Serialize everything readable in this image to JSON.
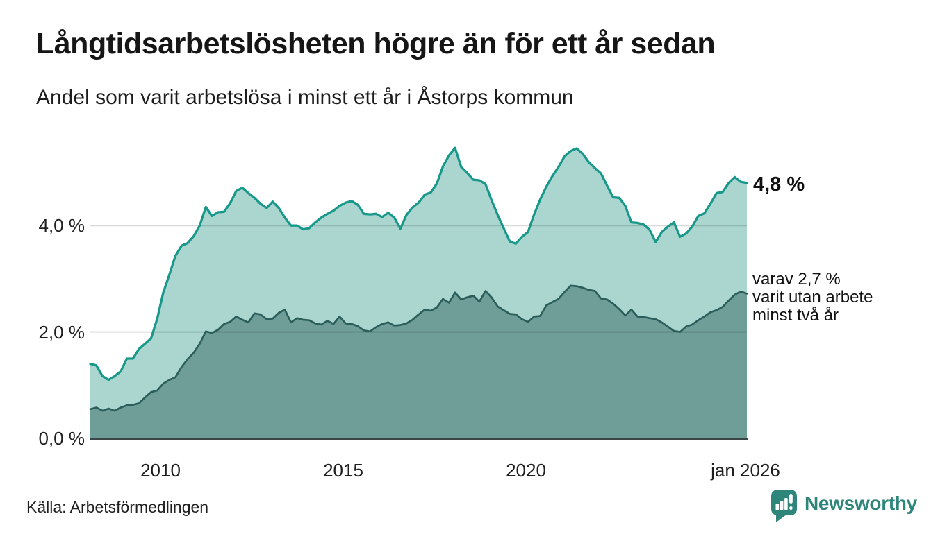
{
  "header": {
    "title": "Långtidsarbetslösheten högre än för ett år sedan",
    "subtitle": "Andel som varit arbetslösa i minst ett år i Åstorps kommun"
  },
  "chart_data": {
    "type": "area",
    "x_start": "jan 2008",
    "x_end": "jan 2026",
    "x_step_months": 2,
    "ylim": [
      0,
      5.8
    ],
    "grid": true,
    "grid_color": "#d9d9d9",
    "axis_color": "#3b4648",
    "yticks": [
      {
        "value": 0,
        "label": "0,0 %"
      },
      {
        "value": 2,
        "label": "2,0 %"
      },
      {
        "value": 4,
        "label": "4,0 %"
      }
    ],
    "xticks": [
      {
        "label": "2010"
      },
      {
        "label": "2015"
      },
      {
        "label": "2020"
      },
      {
        "label": "jan 2026"
      }
    ],
    "series": [
      {
        "name": "Andel som varit arbetslösa i minst ett år",
        "line_color": "#17988a",
        "fill_color": "#aad6cf",
        "end_value": "4,8 %",
        "values": [
          1.4,
          1.37,
          1.17,
          1.1,
          1.17,
          1.26,
          1.5,
          1.5,
          1.68,
          1.78,
          1.88,
          2.25,
          2.74,
          3.08,
          3.43,
          3.62,
          3.67,
          3.8,
          4.0,
          4.35,
          4.18,
          4.25,
          4.26,
          4.42,
          4.65,
          4.71,
          4.61,
          4.52,
          4.41,
          4.33,
          4.45,
          4.33,
          4.15,
          4.0,
          4.0,
          3.93,
          3.95,
          4.06,
          4.15,
          4.22,
          4.28,
          4.37,
          4.43,
          4.46,
          4.39,
          4.22,
          4.21,
          4.22,
          4.16,
          4.24,
          4.15,
          3.94,
          4.2,
          4.34,
          4.43,
          4.58,
          4.62,
          4.79,
          5.11,
          5.32,
          5.46,
          5.1,
          4.99,
          4.86,
          4.85,
          4.78,
          4.48,
          4.2,
          3.95,
          3.7,
          3.66,
          3.79,
          3.88,
          4.21,
          4.49,
          4.73,
          4.93,
          5.1,
          5.3,
          5.4,
          5.45,
          5.35,
          5.19,
          5.08,
          4.98,
          4.75,
          4.53,
          4.52,
          4.37,
          4.06,
          4.05,
          4.02,
          3.92,
          3.69,
          3.88,
          3.98,
          4.06,
          3.79,
          3.85,
          3.98,
          4.18,
          4.23,
          4.41,
          4.61,
          4.63,
          4.8,
          4.91,
          4.82,
          4.8
        ]
      },
      {
        "name": "varav utan arbete minst två år",
        "line_color": "#2b5e5a",
        "fill_color": "#6f9e99",
        "end_value": "2,7 %",
        "values": [
          0.55,
          0.58,
          0.52,
          0.56,
          0.52,
          0.58,
          0.62,
          0.63,
          0.66,
          0.77,
          0.87,
          0.9,
          1.03,
          1.1,
          1.15,
          1.34,
          1.49,
          1.61,
          1.78,
          2.01,
          1.98,
          2.04,
          2.15,
          2.19,
          2.29,
          2.23,
          2.18,
          2.35,
          2.33,
          2.24,
          2.25,
          2.36,
          2.42,
          2.18,
          2.26,
          2.23,
          2.22,
          2.16,
          2.14,
          2.21,
          2.15,
          2.29,
          2.16,
          2.15,
          2.11,
          2.03,
          2.01,
          2.09,
          2.15,
          2.18,
          2.12,
          2.13,
          2.16,
          2.23,
          2.33,
          2.42,
          2.4,
          2.46,
          2.62,
          2.55,
          2.74,
          2.61,
          2.65,
          2.68,
          2.57,
          2.77,
          2.65,
          2.48,
          2.41,
          2.34,
          2.33,
          2.24,
          2.19,
          2.29,
          2.3,
          2.5,
          2.56,
          2.62,
          2.75,
          2.87,
          2.86,
          2.83,
          2.79,
          2.77,
          2.63,
          2.61,
          2.53,
          2.43,
          2.31,
          2.42,
          2.29,
          2.28,
          2.26,
          2.24,
          2.18,
          2.1,
          2.02,
          2.0,
          2.1,
          2.14,
          2.22,
          2.29,
          2.37,
          2.41,
          2.47,
          2.59,
          2.7,
          2.76,
          2.72
        ]
      }
    ],
    "annotations": {
      "end_value_label": "4,8 %",
      "secondary_label_lines": [
        "varav 2,7 %",
        "varit utan arbete",
        "minst två år"
      ]
    }
  },
  "footer": {
    "source": "Källa: Arbetsförmedlingen",
    "brand": "Newsworthy",
    "brand_color": "#2e867b"
  }
}
